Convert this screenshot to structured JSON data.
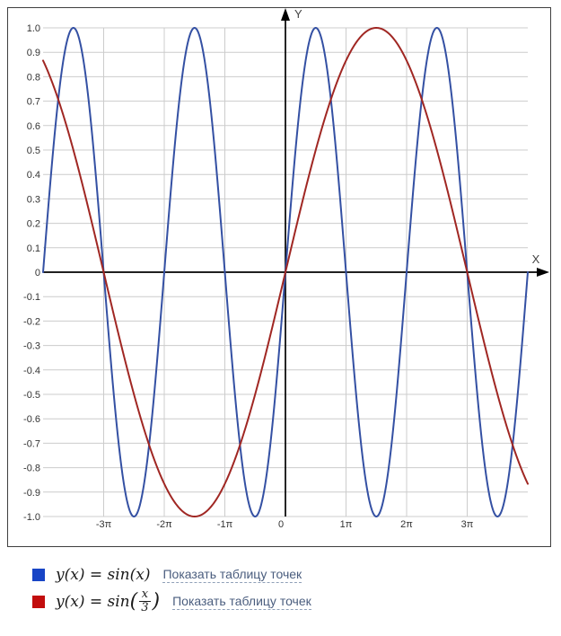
{
  "chart_data": {
    "type": "line",
    "title": "",
    "x_axis_label": "X",
    "y_axis_label": "Y",
    "x_range_pi": [
      -4,
      4
    ],
    "y_range": [
      -1.0,
      1.0
    ],
    "grid": true,
    "grid_color": "#cccccc",
    "axis_color": "#000000",
    "tick_label_color": "#333333",
    "frame_color": "#3f3f3f",
    "x_ticks": [
      {
        "pi": -3,
        "label": "-3π"
      },
      {
        "pi": -2,
        "label": "-2π"
      },
      {
        "pi": -1,
        "label": "-1π"
      },
      {
        "pi": 0,
        "label": "0"
      },
      {
        "pi": 1,
        "label": "1π"
      },
      {
        "pi": 2,
        "label": "2π"
      },
      {
        "pi": 3,
        "label": "3π"
      }
    ],
    "y_ticks": [
      {
        "v": 1.0,
        "label": "1.0"
      },
      {
        "v": 0.9,
        "label": "0.9"
      },
      {
        "v": 0.8,
        "label": "0.8"
      },
      {
        "v": 0.7,
        "label": "0.7"
      },
      {
        "v": 0.6,
        "label": "0.6"
      },
      {
        "v": 0.5,
        "label": "0.5"
      },
      {
        "v": 0.4,
        "label": "0.4"
      },
      {
        "v": 0.3,
        "label": "0.3"
      },
      {
        "v": 0.2,
        "label": "0.2"
      },
      {
        "v": 0.1,
        "label": "0.1"
      },
      {
        "v": 0,
        "label": "0"
      },
      {
        "v": -0.1,
        "label": "-0.1"
      },
      {
        "v": -0.2,
        "label": "-0.2"
      },
      {
        "v": -0.3,
        "label": "-0.3"
      },
      {
        "v": -0.4,
        "label": "-0.4"
      },
      {
        "v": -0.5,
        "label": "-0.5"
      },
      {
        "v": -0.6,
        "label": "-0.6"
      },
      {
        "v": -0.7,
        "label": "-0.7"
      },
      {
        "v": -0.8,
        "label": "-0.8"
      },
      {
        "v": -0.9,
        "label": "-0.9"
      },
      {
        "v": -1.0,
        "label": "-1.0"
      }
    ],
    "series": [
      {
        "name": "y(x) = sin(x)",
        "color": "#3450a3",
        "amplitude": 1,
        "x_divisor": 1
      },
      {
        "name": "y(x) = sin(x/3)",
        "color": "#a02723",
        "amplitude": 1,
        "x_divisor": 3
      }
    ]
  },
  "legend": {
    "entries": [
      {
        "swatch_color": "#1845c6",
        "formula_prefix": "y(x) = sin(x)",
        "fraction": null,
        "formula_suffix": "",
        "link_label": "Показать таблицу точек"
      },
      {
        "swatch_color": "#c20d0d",
        "formula_prefix": "y(x) = sin",
        "fraction": {
          "numerator": "x",
          "denominator": "3"
        },
        "formula_suffix": "",
        "link_label": "Показать таблицу точек"
      }
    ]
  }
}
